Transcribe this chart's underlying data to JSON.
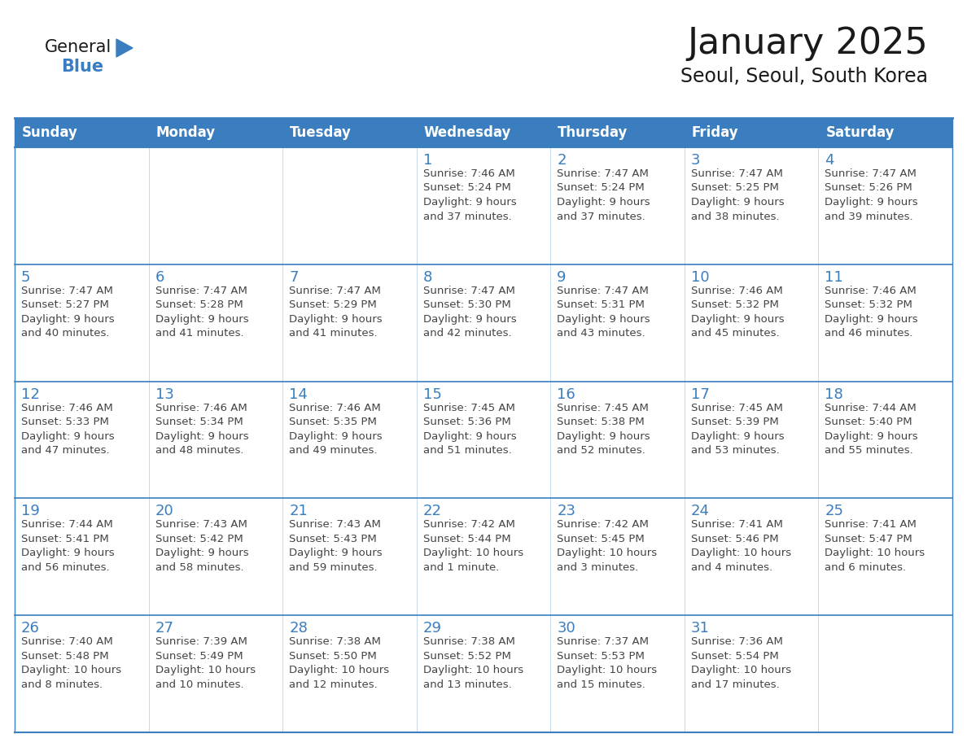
{
  "title": "January 2025",
  "subtitle": "Seoul, Seoul, South Korea",
  "header_color": "#3a7ebf",
  "header_text_color": "#ffffff",
  "cell_bg_color": "#ffffff",
  "border_color": "#3a7ebf",
  "day_number_color": "#3a7ebf",
  "cell_text_color": "#444444",
  "title_color": "#1a1a1a",
  "weekdays": [
    "Sunday",
    "Monday",
    "Tuesday",
    "Wednesday",
    "Thursday",
    "Friday",
    "Saturday"
  ],
  "logo_general_color": "#1a1a1a",
  "logo_blue_color": "#3a7ebf",
  "logo_triangle_color": "#3a7ebf",
  "calendar_data": [
    [
      {
        "day": "",
        "info": ""
      },
      {
        "day": "",
        "info": ""
      },
      {
        "day": "",
        "info": ""
      },
      {
        "day": "1",
        "info": "Sunrise: 7:46 AM\nSunset: 5:24 PM\nDaylight: 9 hours\nand 37 minutes."
      },
      {
        "day": "2",
        "info": "Sunrise: 7:47 AM\nSunset: 5:24 PM\nDaylight: 9 hours\nand 37 minutes."
      },
      {
        "day": "3",
        "info": "Sunrise: 7:47 AM\nSunset: 5:25 PM\nDaylight: 9 hours\nand 38 minutes."
      },
      {
        "day": "4",
        "info": "Sunrise: 7:47 AM\nSunset: 5:26 PM\nDaylight: 9 hours\nand 39 minutes."
      }
    ],
    [
      {
        "day": "5",
        "info": "Sunrise: 7:47 AM\nSunset: 5:27 PM\nDaylight: 9 hours\nand 40 minutes."
      },
      {
        "day": "6",
        "info": "Sunrise: 7:47 AM\nSunset: 5:28 PM\nDaylight: 9 hours\nand 41 minutes."
      },
      {
        "day": "7",
        "info": "Sunrise: 7:47 AM\nSunset: 5:29 PM\nDaylight: 9 hours\nand 41 minutes."
      },
      {
        "day": "8",
        "info": "Sunrise: 7:47 AM\nSunset: 5:30 PM\nDaylight: 9 hours\nand 42 minutes."
      },
      {
        "day": "9",
        "info": "Sunrise: 7:47 AM\nSunset: 5:31 PM\nDaylight: 9 hours\nand 43 minutes."
      },
      {
        "day": "10",
        "info": "Sunrise: 7:46 AM\nSunset: 5:32 PM\nDaylight: 9 hours\nand 45 minutes."
      },
      {
        "day": "11",
        "info": "Sunrise: 7:46 AM\nSunset: 5:32 PM\nDaylight: 9 hours\nand 46 minutes."
      }
    ],
    [
      {
        "day": "12",
        "info": "Sunrise: 7:46 AM\nSunset: 5:33 PM\nDaylight: 9 hours\nand 47 minutes."
      },
      {
        "day": "13",
        "info": "Sunrise: 7:46 AM\nSunset: 5:34 PM\nDaylight: 9 hours\nand 48 minutes."
      },
      {
        "day": "14",
        "info": "Sunrise: 7:46 AM\nSunset: 5:35 PM\nDaylight: 9 hours\nand 49 minutes."
      },
      {
        "day": "15",
        "info": "Sunrise: 7:45 AM\nSunset: 5:36 PM\nDaylight: 9 hours\nand 51 minutes."
      },
      {
        "day": "16",
        "info": "Sunrise: 7:45 AM\nSunset: 5:38 PM\nDaylight: 9 hours\nand 52 minutes."
      },
      {
        "day": "17",
        "info": "Sunrise: 7:45 AM\nSunset: 5:39 PM\nDaylight: 9 hours\nand 53 minutes."
      },
      {
        "day": "18",
        "info": "Sunrise: 7:44 AM\nSunset: 5:40 PM\nDaylight: 9 hours\nand 55 minutes."
      }
    ],
    [
      {
        "day": "19",
        "info": "Sunrise: 7:44 AM\nSunset: 5:41 PM\nDaylight: 9 hours\nand 56 minutes."
      },
      {
        "day": "20",
        "info": "Sunrise: 7:43 AM\nSunset: 5:42 PM\nDaylight: 9 hours\nand 58 minutes."
      },
      {
        "day": "21",
        "info": "Sunrise: 7:43 AM\nSunset: 5:43 PM\nDaylight: 9 hours\nand 59 minutes."
      },
      {
        "day": "22",
        "info": "Sunrise: 7:42 AM\nSunset: 5:44 PM\nDaylight: 10 hours\nand 1 minute."
      },
      {
        "day": "23",
        "info": "Sunrise: 7:42 AM\nSunset: 5:45 PM\nDaylight: 10 hours\nand 3 minutes."
      },
      {
        "day": "24",
        "info": "Sunrise: 7:41 AM\nSunset: 5:46 PM\nDaylight: 10 hours\nand 4 minutes."
      },
      {
        "day": "25",
        "info": "Sunrise: 7:41 AM\nSunset: 5:47 PM\nDaylight: 10 hours\nand 6 minutes."
      }
    ],
    [
      {
        "day": "26",
        "info": "Sunrise: 7:40 AM\nSunset: 5:48 PM\nDaylight: 10 hours\nand 8 minutes."
      },
      {
        "day": "27",
        "info": "Sunrise: 7:39 AM\nSunset: 5:49 PM\nDaylight: 10 hours\nand 10 minutes."
      },
      {
        "day": "28",
        "info": "Sunrise: 7:38 AM\nSunset: 5:50 PM\nDaylight: 10 hours\nand 12 minutes."
      },
      {
        "day": "29",
        "info": "Sunrise: 7:38 AM\nSunset: 5:52 PM\nDaylight: 10 hours\nand 13 minutes."
      },
      {
        "day": "30",
        "info": "Sunrise: 7:37 AM\nSunset: 5:53 PM\nDaylight: 10 hours\nand 15 minutes."
      },
      {
        "day": "31",
        "info": "Sunrise: 7:36 AM\nSunset: 5:54 PM\nDaylight: 10 hours\nand 17 minutes."
      },
      {
        "day": "",
        "info": ""
      }
    ]
  ],
  "fig_width": 11.88,
  "fig_height": 9.18,
  "dpi": 100,
  "title_fontsize": 32,
  "subtitle_fontsize": 17,
  "header_fontsize": 12,
  "day_num_fontsize": 13,
  "cell_text_fontsize": 9.5,
  "logo_general_fontsize": 15,
  "logo_blue_fontsize": 15
}
